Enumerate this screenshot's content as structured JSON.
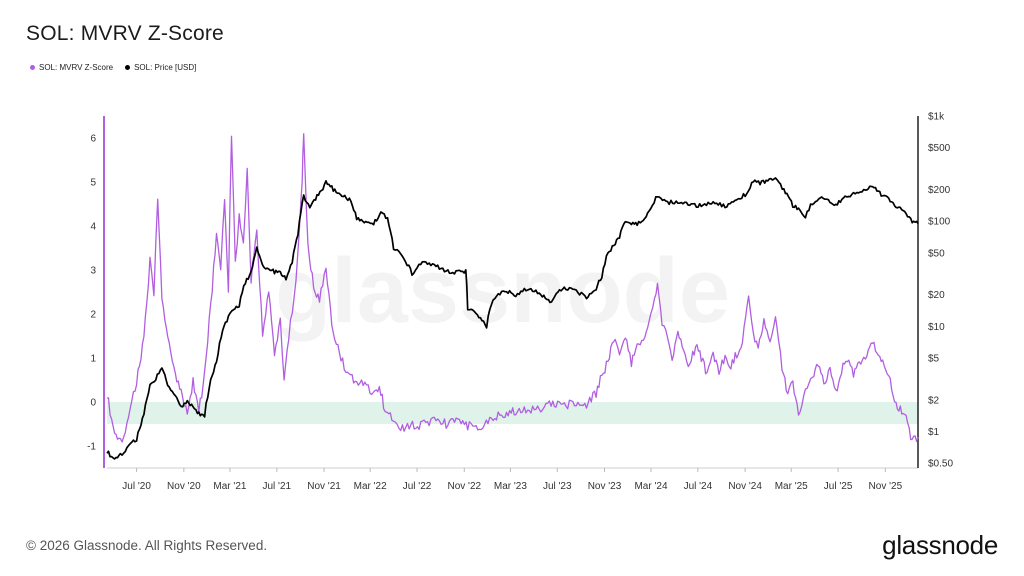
{
  "chart_data": {
    "type": "line",
    "title": "SOL: MVRV Z-Score",
    "watermark": "glassnode",
    "legend": {
      "placement": "top-left",
      "items": [
        {
          "label": "SOL: MVRV Z-Score",
          "color": "#b15fe0"
        },
        {
          "label": "SOL: Price [USD]",
          "color": "#000000"
        }
      ]
    },
    "x_axis": {
      "start": "2020-04-15",
      "end": "2026-01-25",
      "tick_labels": [
        "Jul '20",
        "Nov '20",
        "Mar '21",
        "Jul '21",
        "Nov '21",
        "Mar '22",
        "Jul '22",
        "Nov '22",
        "Mar '23",
        "Jul '23",
        "Nov '23",
        "Mar '24",
        "Jul '24",
        "Nov '24",
        "Mar '25",
        "Jul '25",
        "Nov '25"
      ],
      "tick_dates": [
        "2020-07-01",
        "2020-11-01",
        "2021-03-01",
        "2021-07-01",
        "2021-11-01",
        "2022-03-01",
        "2022-07-01",
        "2022-11-01",
        "2023-03-01",
        "2023-07-01",
        "2023-11-01",
        "2024-03-01",
        "2024-07-01",
        "2024-11-01",
        "2025-03-01",
        "2025-07-01",
        "2025-11-01"
      ]
    },
    "y_left": {
      "label": "",
      "range": [
        -1.5,
        6.5
      ],
      "ticks": [
        -1,
        0,
        1,
        2,
        3,
        4,
        5,
        6
      ],
      "tick_labels": [
        "-1",
        "0",
        "1",
        "2",
        "3",
        "4",
        "5",
        "6"
      ]
    },
    "y_right": {
      "label": "",
      "scale": "log",
      "range": [
        0.45,
        1000
      ],
      "ticks": [
        0.5,
        1,
        2,
        5,
        10,
        20,
        50,
        100,
        200,
        500,
        1000
      ],
      "tick_labels": [
        "$0.50",
        "$1",
        "$2",
        "$5",
        "$10",
        "$20",
        "$50",
        "$100",
        "$200",
        "$500",
        "$1k"
      ]
    },
    "band": {
      "y_from": -0.5,
      "y_to": 0,
      "color": "#dff3ea"
    },
    "grid": false,
    "series": [
      {
        "name": "SOL: MVRV Z-Score",
        "axis": "left",
        "color": "#b15fe0",
        "x": [
          "2020-04-15",
          "2020-05-01",
          "2020-05-20",
          "2020-06-10",
          "2020-07-01",
          "2020-07-20",
          "2020-08-05",
          "2020-08-15",
          "2020-08-25",
          "2020-09-05",
          "2020-09-20",
          "2020-10-10",
          "2020-10-25",
          "2020-11-10",
          "2020-11-25",
          "2020-12-10",
          "2020-12-25",
          "2021-01-10",
          "2021-01-25",
          "2021-02-05",
          "2021-02-15",
          "2021-02-25",
          "2021-03-05",
          "2021-03-15",
          "2021-03-25",
          "2021-04-05",
          "2021-04-15",
          "2021-04-25",
          "2021-05-10",
          "2021-05-25",
          "2021-06-10",
          "2021-06-25",
          "2021-07-10",
          "2021-07-20",
          "2021-08-01",
          "2021-08-15",
          "2021-08-25",
          "2021-09-05",
          "2021-09-09",
          "2021-09-20",
          "2021-10-05",
          "2021-10-20",
          "2021-11-06",
          "2021-11-25",
          "2021-12-15",
          "2022-01-05",
          "2022-01-25",
          "2022-02-15",
          "2022-03-05",
          "2022-03-25",
          "2022-04-05",
          "2022-05-01",
          "2022-05-15",
          "2022-06-15",
          "2022-07-15",
          "2022-08-15",
          "2022-09-15",
          "2022-10-15",
          "2022-11-10",
          "2022-12-15",
          "2023-01-15",
          "2023-02-15",
          "2023-03-15",
          "2023-04-15",
          "2023-05-15",
          "2023-06-15",
          "2023-07-15",
          "2023-08-15",
          "2023-09-15",
          "2023-10-10",
          "2023-10-25",
          "2023-11-10",
          "2023-11-25",
          "2023-12-10",
          "2023-12-25",
          "2024-01-10",
          "2024-01-25",
          "2024-02-10",
          "2024-02-25",
          "2024-03-10",
          "2024-03-18",
          "2024-03-30",
          "2024-04-13",
          "2024-04-25",
          "2024-05-10",
          "2024-05-25",
          "2024-06-10",
          "2024-06-25",
          "2024-07-10",
          "2024-07-25",
          "2024-08-10",
          "2024-08-25",
          "2024-09-10",
          "2024-09-25",
          "2024-10-10",
          "2024-10-25",
          "2024-11-10",
          "2024-11-22",
          "2024-12-05",
          "2024-12-20",
          "2025-01-05",
          "2025-01-19",
          "2025-02-05",
          "2025-02-20",
          "2025-03-05",
          "2025-03-20",
          "2025-04-07",
          "2025-04-25",
          "2025-05-10",
          "2025-05-25",
          "2025-06-10",
          "2025-06-25",
          "2025-07-10",
          "2025-07-25",
          "2025-08-10",
          "2025-08-25",
          "2025-09-10",
          "2025-09-25",
          "2025-10-10",
          "2025-10-25",
          "2025-11-10",
          "2025-11-25",
          "2025-12-10",
          "2025-12-25",
          "2026-01-10",
          "2026-01-25"
        ],
        "values": [
          0.2,
          -0.6,
          -0.9,
          -0.4,
          0.5,
          1.4,
          3.2,
          2.5,
          4.6,
          2.4,
          1.5,
          0.6,
          0.2,
          -0.3,
          0.5,
          -0.2,
          0.6,
          2.2,
          3.8,
          2.9,
          4.7,
          2.6,
          6.1,
          3.1,
          4.2,
          3.6,
          5.3,
          2.8,
          3.9,
          1.6,
          2.5,
          1.1,
          1.8,
          0.6,
          1.5,
          2.3,
          3.4,
          5.1,
          6.1,
          3.6,
          2.6,
          2.3,
          3.0,
          1.5,
          1.0,
          0.6,
          0.4,
          0.5,
          0.1,
          0.4,
          -0.05,
          -0.5,
          -0.65,
          -0.55,
          -0.5,
          -0.45,
          -0.5,
          -0.45,
          -0.55,
          -0.6,
          -0.35,
          -0.25,
          -0.2,
          -0.15,
          -0.15,
          -0.05,
          -0.1,
          0.0,
          -0.05,
          0.2,
          0.6,
          0.9,
          1.4,
          1.1,
          1.5,
          0.9,
          1.4,
          1.3,
          1.9,
          2.3,
          2.8,
          1.8,
          1.5,
          0.9,
          1.7,
          1.1,
          0.8,
          1.3,
          1.0,
          0.6,
          1.1,
          0.7,
          1.0,
          0.8,
          1.1,
          1.4,
          2.4,
          1.6,
          1.2,
          1.8,
          1.4,
          2.0,
          0.8,
          0.2,
          0.4,
          -0.3,
          0.2,
          0.6,
          0.9,
          0.4,
          0.8,
          0.2,
          0.7,
          1.0,
          0.6,
          0.9,
          1.0,
          1.4,
          1.1,
          0.9,
          0.6,
          0.0,
          -0.2,
          -0.3,
          -0.9,
          -0.8
        ]
      },
      {
        "name": "SOL: Price [USD]",
        "axis": "right",
        "color": "#000000",
        "x": [
          "2020-04-15",
          "2020-05-01",
          "2020-05-20",
          "2020-06-10",
          "2020-07-01",
          "2020-07-20",
          "2020-08-05",
          "2020-08-20",
          "2020-09-05",
          "2020-09-20",
          "2020-10-10",
          "2020-10-25",
          "2020-11-10",
          "2020-11-25",
          "2020-12-10",
          "2020-12-25",
          "2021-01-10",
          "2021-01-25",
          "2021-02-10",
          "2021-02-25",
          "2021-03-10",
          "2021-03-25",
          "2021-04-10",
          "2021-04-25",
          "2021-05-10",
          "2021-05-25",
          "2021-06-10",
          "2021-06-25",
          "2021-07-10",
          "2021-07-25",
          "2021-08-10",
          "2021-08-25",
          "2021-09-09",
          "2021-09-25",
          "2021-10-10",
          "2021-10-25",
          "2021-11-06",
          "2021-11-25",
          "2021-12-10",
          "2021-12-25",
          "2022-01-10",
          "2022-01-25",
          "2022-02-10",
          "2022-02-25",
          "2022-03-10",
          "2022-03-29",
          "2022-04-15",
          "2022-05-01",
          "2022-05-15",
          "2022-06-01",
          "2022-06-18",
          "2022-07-15",
          "2022-08-15",
          "2022-09-15",
          "2022-10-15",
          "2022-11-05",
          "2022-11-10",
          "2022-12-01",
          "2022-12-29",
          "2023-01-15",
          "2023-02-15",
          "2023-03-15",
          "2023-04-15",
          "2023-05-15",
          "2023-06-12",
          "2023-07-15",
          "2023-08-15",
          "2023-09-15",
          "2023-10-10",
          "2023-10-25",
          "2023-11-10",
          "2023-11-25",
          "2023-12-10",
          "2023-12-25",
          "2024-01-10",
          "2024-01-25",
          "2024-02-10",
          "2024-02-25",
          "2024-03-18",
          "2024-04-13",
          "2024-05-10",
          "2024-06-10",
          "2024-07-10",
          "2024-08-10",
          "2024-09-10",
          "2024-10-10",
          "2024-11-10",
          "2024-11-22",
          "2024-12-10",
          "2025-01-19",
          "2025-02-10",
          "2025-03-05",
          "2025-03-20",
          "2025-04-07",
          "2025-04-25",
          "2025-05-15",
          "2025-06-10",
          "2025-06-25",
          "2025-07-15",
          "2025-08-10",
          "2025-09-10",
          "2025-09-25",
          "2025-10-10",
          "2025-10-25",
          "2025-11-10",
          "2025-11-25",
          "2025-12-10",
          "2025-12-25",
          "2026-01-10",
          "2026-01-25"
        ],
        "values": [
          0.65,
          0.55,
          0.6,
          0.72,
          0.85,
          1.4,
          2.7,
          3.2,
          4.0,
          2.8,
          2.2,
          1.7,
          1.9,
          1.7,
          1.5,
          1.4,
          3.0,
          4.5,
          9.0,
          12,
          15,
          16,
          26,
          32,
          55,
          38,
          35,
          33,
          33,
          29,
          40,
          75,
          170,
          140,
          165,
          190,
          240,
          200,
          185,
          175,
          155,
          105,
          98,
          95,
          95,
          120,
          105,
          55,
          50,
          42,
          32,
          40,
          38,
          33,
          33,
          33,
          15,
          13,
          10,
          18,
          22,
          20,
          23,
          21,
          17,
          23,
          22,
          19,
          23,
          30,
          50,
          58,
          70,
          100,
          95,
          95,
          105,
          120,
          175,
          150,
          155,
          145,
          140,
          150,
          140,
          155,
          190,
          240,
          230,
          250,
          200,
          140,
          130,
          110,
          150,
          170,
          150,
          145,
          165,
          180,
          200,
          220,
          200,
          175,
          160,
          140,
          130,
          120,
          100,
          95
        ]
      }
    ]
  },
  "footer": {
    "copyright": "© 2026 Glassnode. All Rights Reserved.",
    "brand": "glassnode"
  }
}
